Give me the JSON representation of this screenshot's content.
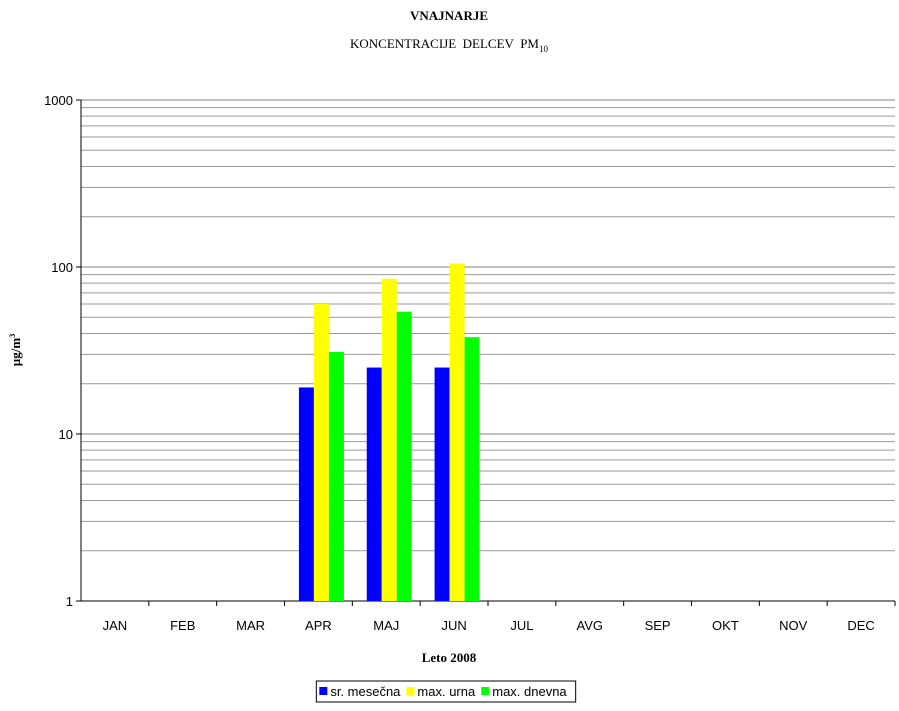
{
  "chart_data": {
    "type": "bar",
    "title": "VNAJNARJE",
    "subtitle": "KONCENTRACIJE  DELCEV  PM",
    "subtitle_subscript": "10",
    "xlabel": "Leto 2008",
    "ylabel": "µg/m",
    "ylabel_superscript": "3",
    "categories": [
      "JAN",
      "FEB",
      "MAR",
      "APR",
      "MAJ",
      "JUN",
      "JUL",
      "AVG",
      "SEP",
      "OKT",
      "NOV",
      "DEC"
    ],
    "series": [
      {
        "name": "sr. mesečna",
        "color": "#0000ff",
        "values": [
          null,
          null,
          null,
          19,
          25,
          25,
          null,
          null,
          null,
          null,
          null,
          null
        ]
      },
      {
        "name": "max. urna",
        "color": "#ffff00",
        "values": [
          null,
          null,
          null,
          60,
          85,
          105,
          null,
          null,
          null,
          null,
          null,
          null
        ]
      },
      {
        "name": "max. dnevna",
        "color": "#00ff00",
        "values": [
          null,
          null,
          null,
          31,
          54,
          38,
          null,
          null,
          null,
          null,
          null,
          null
        ]
      }
    ],
    "ylim": [
      1,
      1000
    ],
    "yticks": [
      1,
      10,
      100,
      1000
    ],
    "minor_yticks": [
      2,
      3,
      4,
      5,
      6,
      7,
      8,
      9,
      20,
      30,
      40,
      50,
      60,
      70,
      80,
      90,
      200,
      300,
      400,
      500,
      600,
      700,
      800,
      900
    ],
    "log_y": true,
    "grid": true,
    "legend": "bottom"
  }
}
